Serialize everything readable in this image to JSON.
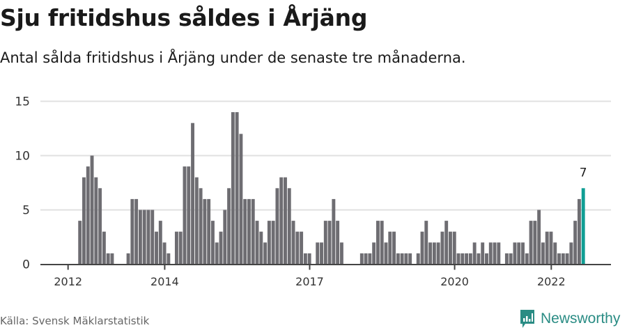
{
  "header": {
    "title": "Sju fritidshus såldes i Årjäng",
    "subtitle": "Antal sålda fritidshus i Årjäng under de senaste tre månaderna."
  },
  "footer": {
    "source": "Källa: Svensk Mäklarstatistik",
    "brand": "Newsworthy"
  },
  "colors": {
    "bar": "#6e6d72",
    "highlight": "#0f9e94",
    "grid": "#e0e0e0",
    "axis": "#444444",
    "brand": "#2a8c84"
  },
  "chart_data": {
    "type": "bar",
    "title": "Sju fritidshus såldes i Årjäng",
    "subtitle": "Antal sålda fritidshus i Årjäng under de senaste tre månaderna.",
    "xlabel": "",
    "ylabel": "",
    "ylim": [
      0,
      15
    ],
    "yticks": [
      0,
      5,
      10,
      15
    ],
    "xticks": [
      {
        "label": "2012",
        "month_index": 0
      },
      {
        "label": "2014",
        "month_index": 24
      },
      {
        "label": "2017",
        "month_index": 60
      },
      {
        "label": "2020",
        "month_index": 96
      },
      {
        "label": "2022",
        "month_index": 120
      }
    ],
    "grid": true,
    "x_start": "2012-01",
    "frequency": "monthly",
    "values": [
      null,
      null,
      4,
      8,
      9,
      10,
      8,
      7,
      3,
      1,
      1,
      null,
      null,
      null,
      1,
      6,
      6,
      5,
      5,
      5,
      5,
      3,
      4,
      2,
      1,
      null,
      3,
      3,
      9,
      9,
      13,
      8,
      7,
      6,
      6,
      4,
      2,
      3,
      5,
      7,
      14,
      14,
      12,
      6,
      6,
      6,
      4,
      3,
      2,
      4,
      4,
      7,
      8,
      8,
      7,
      4,
      3,
      3,
      1,
      1,
      null,
      2,
      2,
      4,
      4,
      6,
      4,
      2,
      null,
      null,
      null,
      null,
      1,
      1,
      1,
      2,
      4,
      4,
      2,
      3,
      3,
      1,
      1,
      1,
      1,
      null,
      1,
      3,
      4,
      2,
      2,
      2,
      3,
      4,
      3,
      3,
      1,
      1,
      1,
      1,
      2,
      1,
      2,
      1,
      2,
      2,
      2,
      null,
      1,
      1,
      2,
      2,
      2,
      1,
      4,
      4,
      5,
      2,
      3,
      3,
      2,
      1,
      1,
      1,
      2,
      4,
      6,
      7
    ],
    "highlight": {
      "month_index": 127,
      "label": "7",
      "value": 7
    },
    "annotations": [
      "7"
    ]
  }
}
